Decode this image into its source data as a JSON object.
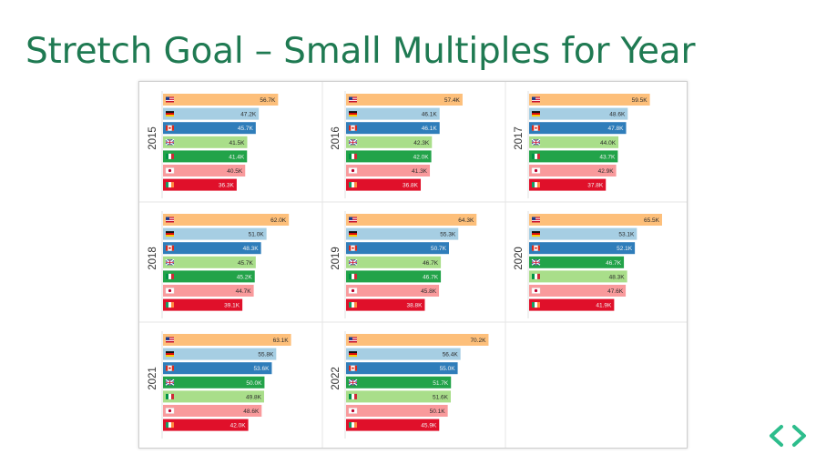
{
  "slide": {
    "title": "Stretch Goal – Small Multiples for Year"
  },
  "colors": {
    "title": "#1f7a52",
    "nav": "#2dbd8c",
    "countries": [
      "#fdbf7a",
      "#a6cee3",
      "#2f7dba",
      "#a9de8a",
      "#22a349",
      "#f99a9c",
      "#e0102a"
    ]
  },
  "countries": [
    {
      "name": "United States",
      "flag": "us-flag-icon"
    },
    {
      "name": "Germany",
      "flag": "germany-flag-icon"
    },
    {
      "name": "Canada",
      "flag": "canada-flag-icon"
    },
    {
      "name": "United Kingdom",
      "flag": "uk-flag-icon"
    },
    {
      "name": "Italy",
      "flag": "italy-flag-icon"
    },
    {
      "name": "Japan",
      "flag": "japan-flag-icon"
    },
    {
      "name": "Ireland",
      "flag": "ireland-flag-icon"
    }
  ],
  "chart_data": {
    "type": "bar",
    "orientation": "horizontal",
    "layout": "small-multiples",
    "xlim": [
      0,
      70
    ],
    "units": "K",
    "panels": [
      {
        "year": "2015",
        "values": [
          56.7,
          47.2,
          45.7,
          41.5,
          41.4,
          40.5,
          36.3
        ],
        "labels": [
          "56.7K",
          "47.2K",
          "45.7K",
          "41.5K",
          "41.4K",
          "40.5K",
          "36.3K"
        ],
        "colors": [
          "#fdbf7a",
          "#a6cee3",
          "#2f7dba",
          "#a9de8a",
          "#22a349",
          "#f99a9c",
          "#e0102a"
        ]
      },
      {
        "year": "2016",
        "values": [
          57.4,
          46.1,
          46.1,
          42.3,
          42.0,
          41.3,
          36.8
        ],
        "labels": [
          "57.4K",
          "46.1K",
          "46.1K",
          "42.3K",
          "42.0K",
          "41.3K",
          "36.8K"
        ],
        "colors": [
          "#fdbf7a",
          "#a6cee3",
          "#2f7dba",
          "#a9de8a",
          "#22a349",
          "#f99a9c",
          "#e0102a"
        ]
      },
      {
        "year": "2017",
        "values": [
          59.5,
          48.6,
          47.8,
          44.0,
          43.7,
          42.9,
          37.8
        ],
        "labels": [
          "59.5K",
          "48.6K",
          "47.8K",
          "44.0K",
          "43.7K",
          "42.9K",
          "37.8K"
        ],
        "colors": [
          "#fdbf7a",
          "#a6cee3",
          "#2f7dba",
          "#a9de8a",
          "#22a349",
          "#f99a9c",
          "#e0102a"
        ]
      },
      {
        "year": "2018",
        "values": [
          62.0,
          51.0,
          48.3,
          45.7,
          45.2,
          44.7,
          39.1
        ],
        "labels": [
          "62.0K",
          "51.0K",
          "48.3K",
          "45.7K",
          "45.2K",
          "44.7K",
          "39.1K"
        ],
        "colors": [
          "#fdbf7a",
          "#a6cee3",
          "#2f7dba",
          "#a9de8a",
          "#22a349",
          "#f99a9c",
          "#e0102a"
        ]
      },
      {
        "year": "2019",
        "values": [
          64.3,
          55.3,
          50.7,
          46.7,
          46.7,
          45.8,
          38.8
        ],
        "labels": [
          "64.3K",
          "55.3K",
          "50.7K",
          "46.7K",
          "46.7K",
          "45.8K",
          "38.8K"
        ],
        "colors": [
          "#fdbf7a",
          "#a6cee3",
          "#2f7dba",
          "#a9de8a",
          "#22a349",
          "#f99a9c",
          "#e0102a"
        ]
      },
      {
        "year": "2020",
        "values": [
          65.5,
          53.1,
          52.1,
          46.7,
          48.3,
          47.6,
          41.9
        ],
        "labels": [
          "65.5K",
          "53.1K",
          "52.1K",
          "46.7K",
          "48.3K",
          "47.6K",
          "41.9K"
        ],
        "colors": [
          "#fdbf7a",
          "#a6cee3",
          "#2f7dba",
          "#22a349",
          "#a9de8a",
          "#f99a9c",
          "#e0102a"
        ]
      },
      {
        "year": "2021",
        "values": [
          63.1,
          55.8,
          53.6,
          50.0,
          49.8,
          48.6,
          42.0
        ],
        "labels": [
          "63.1K",
          "55.8K",
          "53.6K",
          "50.0K",
          "49.8K",
          "48.6K",
          "42.0K"
        ],
        "colors": [
          "#fdbf7a",
          "#a6cee3",
          "#2f7dba",
          "#22a349",
          "#a9de8a",
          "#f99a9c",
          "#e0102a"
        ]
      },
      {
        "year": "2022",
        "values": [
          70.2,
          56.4,
          55.0,
          51.7,
          51.6,
          50.1,
          45.9
        ],
        "labels": [
          "70.2K",
          "56.4K",
          "55.0K",
          "51.7K",
          "51.6K",
          "50.1K",
          "45.9K"
        ],
        "colors": [
          "#fdbf7a",
          "#a6cee3",
          "#2f7dba",
          "#22a349",
          "#a9de8a",
          "#f99a9c",
          "#e0102a"
        ]
      }
    ]
  }
}
